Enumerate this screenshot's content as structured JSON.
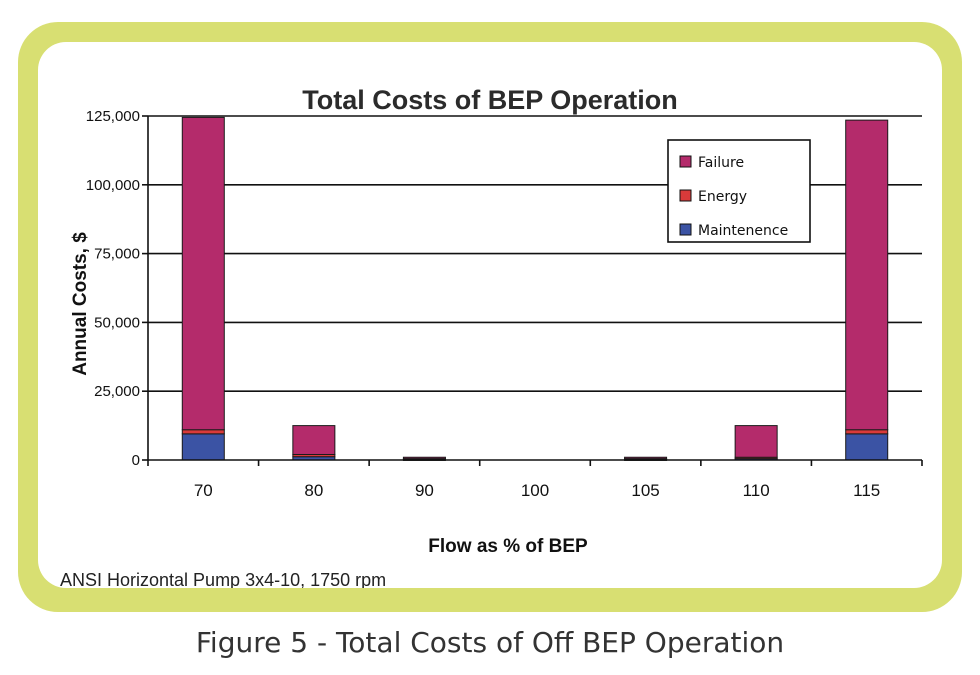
{
  "chart_data": {
    "type": "bar",
    "stacked": true,
    "title": "Total Costs of BEP Operation",
    "xlabel": "Flow as % of BEP",
    "ylabel": "Annual Costs, $",
    "categories": [
      "70",
      "80",
      "90",
      "100",
      "105",
      "110",
      "115"
    ],
    "ylim": [
      0,
      125000
    ],
    "yticks": [
      0,
      25000,
      50000,
      75000,
      100000,
      125000
    ],
    "ytick_labels": [
      "0",
      "25,000",
      "50,000",
      "75,000",
      "100,000",
      "125,000"
    ],
    "series": [
      {
        "name": "Maintenence",
        "color": "#3b53a4",
        "values": [
          9500,
          1200,
          200,
          0,
          200,
          500,
          9500
        ]
      },
      {
        "name": "Energy",
        "color": "#d93a3a",
        "values": [
          1500,
          800,
          300,
          0,
          300,
          500,
          1500
        ]
      },
      {
        "name": "Failure",
        "color": "#b42b6b",
        "values": [
          113500,
          10500,
          500,
          0,
          500,
          11500,
          112500
        ]
      }
    ],
    "legend": {
      "position": "top-right"
    },
    "grid": true,
    "note": "ANSI Horizontal Pump 3x4-10, 1750 rpm"
  },
  "caption": "Figure 5 - Total Costs of Off BEP Operation"
}
